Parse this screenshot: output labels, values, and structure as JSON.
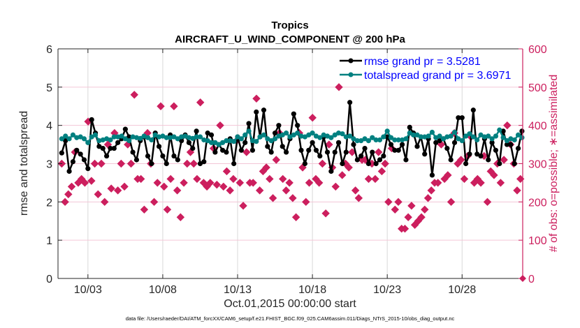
{
  "chart_data": {
    "type": "line",
    "title": "Tropics",
    "subtitle": "AIRCRAFT_U_WIND_COMPONENT @ 200 hPa",
    "xlabel": "Oct.01,2015 00:00:00 start",
    "ylabel": "rmse and totalspread",
    "ylabel_right": "# of obs: o=possible; ∗=assimilated",
    "footnote": "data file: /Users/raeder/DAI/ATM_forcXX/CAM6_setup/f.e21.FHIST_BGC.f09_025.CAM6assim.011/Diags_NTrS_2015-10/obs_diag_output.nc",
    "xlim": [
      1,
      32.05
    ],
    "ylim": [
      0,
      6
    ],
    "ylim_right": [
      0,
      600
    ],
    "x_ticks": [
      3,
      8,
      13,
      18,
      23,
      28
    ],
    "x_tick_labels": [
      "10/03",
      "10/08",
      "10/13",
      "10/18",
      "10/23",
      "10/28"
    ],
    "y_ticks": [
      0,
      1,
      2,
      3,
      4,
      5,
      6
    ],
    "y_tick_labels": [
      "0",
      "1",
      "2",
      "3",
      "4",
      "5",
      "6"
    ],
    "y_ticks_right": [
      0,
      100,
      200,
      300,
      400,
      500,
      600
    ],
    "y_tick_labels_right": [
      "0",
      "100",
      "200",
      "300",
      "400",
      "500",
      "600"
    ],
    "grid": true,
    "legend_position": "top-right",
    "x_start": 1.25,
    "x_step": 0.25,
    "series": [
      {
        "name": "rmse grand pr = 3.5281",
        "color": "#000000",
        "values": [
          3.28,
          3.6,
          2.8,
          3.05,
          3.35,
          3.25,
          3.1,
          2.87,
          4.15,
          3.8,
          3.45,
          3.4,
          3.2,
          3.4,
          3.4,
          3.55,
          3.65,
          3.9,
          3.7,
          3.3,
          3.1,
          3.6,
          3.7,
          3.2,
          3.0,
          3.8,
          3.45,
          3.2,
          3.0,
          3.75,
          3.2,
          3.1,
          3.6,
          3.75,
          3.55,
          3.4,
          3.85,
          3.0,
          3.05,
          3.8,
          3.75,
          3.3,
          3.5,
          3.35,
          3.3,
          3.65,
          3.0,
          3.7,
          3.35,
          3.55,
          4.05,
          3.35,
          4.35,
          3.7,
          4.4,
          3.45,
          3.3,
          3.8,
          4.0,
          3.45,
          3.3,
          3.65,
          4.3,
          4.0,
          3.35,
          3.0,
          3.35,
          3.55,
          3.35,
          3.2,
          3.7,
          3.3,
          2.8,
          3.3,
          3.55,
          3.0,
          3.3,
          4.6,
          3.5,
          3.1,
          3.2,
          3.4,
          3.0,
          3.3,
          3.0,
          3.1,
          3.2,
          3.7,
          3.5,
          3.35,
          3.35,
          3.5,
          3.1,
          3.95,
          3.8,
          3.45,
          3.7,
          3.25,
          3.65,
          2.7,
          3.55,
          3.6,
          3.65,
          3.4,
          3.1,
          3.55,
          4.2,
          4.2,
          3.0,
          3.25,
          4.4,
          3.25,
          3.2,
          3.65,
          3.1,
          3.55,
          3.35,
          3.0,
          3.85,
          3.5,
          3.5,
          3.0,
          3.4,
          3.85,
          3.25,
          3.6,
          3.3
        ],
        "marker": "circle"
      },
      {
        "name": "totalspread grand pr = 3.6971",
        "color": "#008080",
        "values": [
          3.65,
          3.72,
          3.65,
          3.75,
          3.68,
          3.7,
          3.65,
          3.55,
          3.7,
          3.75,
          3.6,
          3.62,
          3.65,
          3.62,
          3.7,
          3.7,
          3.72,
          3.65,
          3.6,
          3.7,
          3.68,
          3.66,
          3.72,
          3.68,
          3.62,
          3.75,
          3.7,
          3.72,
          3.68,
          3.68,
          3.7,
          3.65,
          3.7,
          3.72,
          3.68,
          3.66,
          3.7,
          3.7,
          3.62,
          3.6,
          3.55,
          3.55,
          3.5,
          3.55,
          3.6,
          3.6,
          3.58,
          3.7,
          3.65,
          3.75,
          3.85,
          3.6,
          3.58,
          3.7,
          3.75,
          3.65,
          3.6,
          3.65,
          3.72,
          3.75,
          3.8,
          3.7,
          3.75,
          3.8,
          3.72,
          3.7,
          3.75,
          3.8,
          3.72,
          3.68,
          3.75,
          3.72,
          3.68,
          3.75,
          3.8,
          3.78,
          3.7,
          3.72,
          3.65,
          3.6,
          3.6,
          3.65,
          3.6,
          3.68,
          3.62,
          3.62,
          3.7,
          3.85,
          3.68,
          3.62,
          3.62,
          3.62,
          3.65,
          3.8,
          3.75,
          3.75,
          3.7,
          3.7,
          3.72,
          3.82,
          3.68,
          3.72,
          3.65,
          3.7,
          3.72,
          3.82,
          3.65,
          3.6,
          3.72,
          3.78,
          3.7,
          3.62,
          3.75,
          3.7,
          3.72,
          3.65,
          3.72,
          3.88,
          3.68,
          3.6,
          3.65,
          3.62,
          3.75,
          3.68,
          3.7,
          3.95,
          3.65
        ],
        "marker": "circle"
      },
      {
        "name": "obs possible / assimilated",
        "color": "#cc1f5e",
        "axis": "right",
        "values": [
          300,
          200,
          220,
          240,
          330,
          250,
          260,
          250,
          410,
          255,
          300,
          220,
          300,
          200,
          350,
          235,
          380,
          230,
          300,
          240,
          350,
          300,
          480,
          260,
          260,
          180,
          380,
          300,
          200,
          250,
          450,
          240,
          180,
          260,
          450,
          230,
          160,
          250,
          300,
          330,
          300,
          260,
          460,
          250,
          240,
          250,
          340,
          245,
          400,
          240,
          280,
          230,
          260,
          360,
          250,
          190,
          330,
          250,
          250,
          470,
          230,
          280,
          290,
          260,
          210,
          310,
          380,
          260,
          230,
          250,
          210,
          160,
          380,
          290,
          200,
          250,
          420,
          260,
          250,
          300,
          170,
          350,
          290,
          240,
          500,
          270,
          300,
          290,
          330,
          230,
          210,
          310,
          310,
          260,
          300,
          260,
          330,
          280,
          300,
          200,
          340,
          180,
          200,
          130,
          130,
          160,
          190,
          140,
          150,
          160,
          180,
          210,
          230,
          250,
          250,
          350,
          260,
          270,
          200,
          380,
          300,
          310,
          260,
          320,
          370,
          250,
          260,
          250,
          320,
          200,
          280,
          270,
          300,
          250,
          310,
          400,
          350,
          300,
          230,
          260,
          280,
          300,
          250,
          250
        ]
      }
    ]
  }
}
